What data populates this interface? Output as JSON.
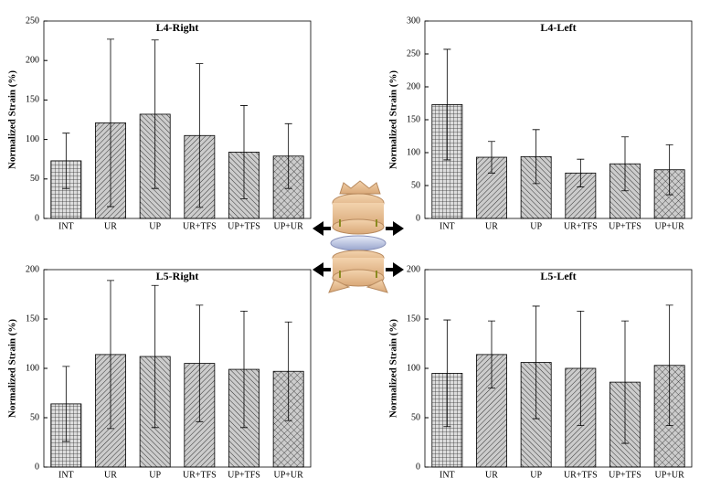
{
  "chart_data": [
    {
      "type": "bar",
      "title": "L4-Right",
      "y_label": "Normalized Strain (%)",
      "categories": [
        "INT",
        "UR",
        "UP",
        "UR+TFS",
        "UP+TFS",
        "UP+UR"
      ],
      "values": [
        73,
        121,
        132,
        105,
        84,
        79
      ],
      "errors": [
        35,
        106,
        94,
        91,
        59,
        41
      ],
      "hatch": [
        "grid",
        "back",
        "fwd",
        "back",
        "fwd",
        "cross"
      ],
      "ylim": [
        0,
        250
      ],
      "yticks": [
        0,
        50,
        100,
        150,
        200,
        250
      ]
    },
    {
      "type": "bar",
      "title": "L4-Left",
      "y_label": "Normalized Strain (%)",
      "categories": [
        "INT",
        "UR",
        "UP",
        "UR+TFS",
        "UP+TFS",
        "UP+UR"
      ],
      "values": [
        173,
        93,
        94,
        69,
        83,
        74
      ],
      "errors": [
        84,
        24,
        41,
        21,
        41,
        38
      ],
      "hatch": [
        "grid",
        "back",
        "fwd",
        "back",
        "fwd",
        "cross"
      ],
      "ylim": [
        0,
        300
      ],
      "yticks": [
        0,
        50,
        100,
        150,
        200,
        250,
        300
      ]
    },
    {
      "type": "bar",
      "title": "L5-Right",
      "y_label": "Normalized Strain (%)",
      "categories": [
        "INT",
        "UR",
        "UP",
        "UR+TFS",
        "UP+TFS",
        "UP+UR"
      ],
      "values": [
        64,
        114,
        112,
        105,
        99,
        97
      ],
      "errors": [
        38,
        75,
        72,
        59,
        59,
        50
      ],
      "hatch": [
        "grid",
        "back",
        "fwd",
        "back",
        "fwd",
        "cross"
      ],
      "ylim": [
        0,
        200
      ],
      "yticks": [
        0,
        50,
        100,
        150,
        200
      ]
    },
    {
      "type": "bar",
      "title": "L5-Left",
      "y_label": "Normalized Strain (%)",
      "categories": [
        "INT",
        "UR",
        "UP",
        "UR+TFS",
        "UP+TFS",
        "UP+UR"
      ],
      "values": [
        95,
        114,
        106,
        100,
        86,
        103
      ],
      "errors": [
        54,
        34,
        57,
        58,
        62,
        61
      ],
      "hatch": [
        "grid",
        "back",
        "fwd",
        "back",
        "fwd",
        "cross"
      ],
      "ylim": [
        0,
        200
      ],
      "yticks": [
        0,
        50,
        100,
        150,
        200
      ]
    }
  ]
}
